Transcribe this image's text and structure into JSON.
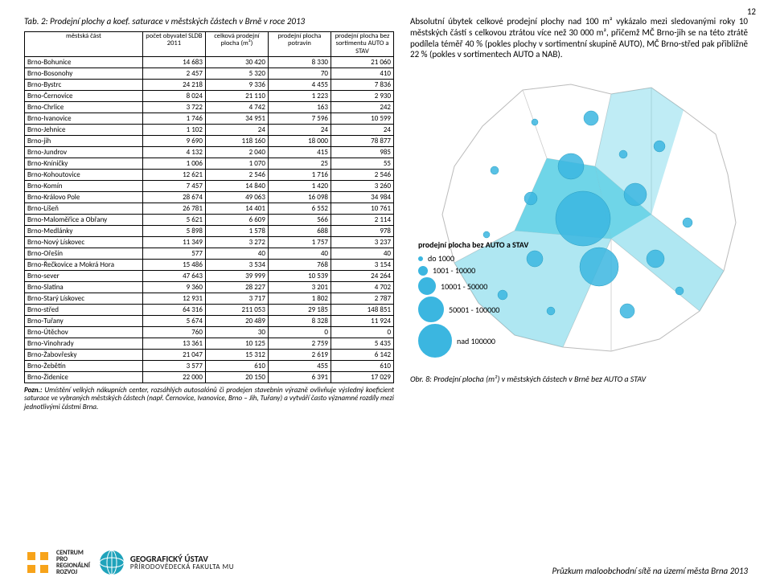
{
  "page_number": "12",
  "table": {
    "title": "Tab. 2:  Prodejní plochy a koef. saturace v městských částech v Brně v roce 2013",
    "headers": [
      "městská část",
      "počet obyvatel SLDB 2011",
      "celková prodejní plocha (m²)",
      "prodejní plocha potravin",
      "prodejní plocha bez sortimentu AUTO a STAV"
    ],
    "header_fontsize": 8.5,
    "cell_fontsize": 9,
    "border_color": "#000000",
    "rows": [
      [
        "Brno-Bohunice",
        "14 683",
        "30 420",
        "8 330",
        "21 060"
      ],
      [
        "Brno-Bosonohy",
        "2 457",
        "5 320",
        "70",
        "410"
      ],
      [
        "Brno-Bystrc",
        "24 218",
        "9 336",
        "4 455",
        "7 836"
      ],
      [
        "Brno-Černovice",
        "8 024",
        "21 110",
        "1 223",
        "2 930"
      ],
      [
        "Brno-Chrlice",
        "3 722",
        "4 742",
        "163",
        "242"
      ],
      [
        "Brno-Ivanovice",
        "1 746",
        "34 951",
        "7 596",
        "10 599"
      ],
      [
        "Brno-Jehnice",
        "1 102",
        "24",
        "24",
        "24"
      ],
      [
        "Brno-jih",
        "9 690",
        "118 160",
        "18 000",
        "78 877"
      ],
      [
        "Brno-Jundrov",
        "4 132",
        "2 040",
        "415",
        "985"
      ],
      [
        "Brno-Kníničky",
        "1 006",
        "1 070",
        "25",
        "55"
      ],
      [
        "Brno-Kohoutovice",
        "12 621",
        "2 546",
        "1 716",
        "2 546"
      ],
      [
        "Brno-Komín",
        "7 457",
        "14 840",
        "1 420",
        "3 260"
      ],
      [
        "Brno-Královo Pole",
        "28 674",
        "49 063",
        "16 098",
        "34 984"
      ],
      [
        "Brno-Líšeň",
        "26 781",
        "14 401",
        "6 552",
        "10 761"
      ],
      [
        "Brno-Maloměřice a Obřany",
        "5 621",
        "6 609",
        "566",
        "2 114"
      ],
      [
        "Brno-Medlánky",
        "5 898",
        "1 578",
        "688",
        "978"
      ],
      [
        "Brno-Nový Lískovec",
        "11 349",
        "3 272",
        "1 757",
        "3 237"
      ],
      [
        "Brno-Ořešín",
        "577",
        "40",
        "40",
        "40"
      ],
      [
        "Brno-Řečkovice a Mokrá Hora",
        "15 486",
        "3 534",
        "768",
        "3 154"
      ],
      [
        "Brno-sever",
        "47 643",
        "39 999",
        "10 539",
        "24 264"
      ],
      [
        "Brno-Slatina",
        "9 360",
        "28 227",
        "3 201",
        "4 702"
      ],
      [
        "Brno-Starý Lískovec",
        "12 931",
        "3 717",
        "1 802",
        "2 787"
      ],
      [
        "Brno-střed",
        "64 316",
        "211 053",
        "29 185",
        "148 851"
      ],
      [
        "Brno-Tuřany",
        "5 674",
        "20 489",
        "8 328",
        "11 924"
      ],
      [
        "Brno-Útěchov",
        "760",
        "30",
        "0",
        "0"
      ],
      [
        "Brno-Vinohrady",
        "13 361",
        "10 125",
        "2 759",
        "5 435"
      ],
      [
        "Brno-Žabovřesky",
        "21 047",
        "15 312",
        "2 619",
        "6 142"
      ],
      [
        "Brno-Žebětín",
        "3 577",
        "610",
        "455",
        "610"
      ],
      [
        "Brno-Židenice",
        "22 000",
        "20 150",
        "6 391",
        "17 029"
      ]
    ],
    "note_label": "Pozn.:",
    "note_text": " Umístění velkých nákupních center, rozsáhlých autosalónů či prodejen stavebnin výrazně ovlivňuje výsledný koeficient saturace ve vybraných městských částech (např. Černovice, Ivanovice, Brno – Jih, Tuřany) a vytváří často významné rozdíly mezi jednotlivými částmi Brna."
  },
  "right_paragraph": "Absolutní úbytek celkové prodejní plochy nad 100 m² vykázalo mezi sledovanými roky 10 městských částí s celkovou ztrátou více než 30 000 m², přičemž MČ Brno-jih se na této ztrátě podílela téměř 40 % (pokles plochy v sortimentní skupině AUTO), MČ Brno-střed pak přibližně 22 % (pokles v sortimentech AUTO a NAB).",
  "map": {
    "caption": "Obr. 8:  Prodejní plocha (m²) v městských částech v Brně bez AUTO a STAV",
    "background_color": "#ffffff",
    "border_color": "#cccccc",
    "area_fill": "#5fd0e6",
    "legend_title": "prodejní plocha bez AUTO a STAV",
    "legend_items": [
      {
        "label": "do 1000",
        "diameter": 6
      },
      {
        "label": "1001 - 10000",
        "diameter": 12
      },
      {
        "label": "10001 - 50000",
        "diameter": 22
      },
      {
        "label": "50001 - 100000",
        "diameter": 32
      },
      {
        "label": "nad 100000",
        "diameter": 42
      }
    ],
    "circle_color": "#3bb6e0"
  },
  "footer": {
    "logo1_line1": "CENTRUM",
    "logo1_line2": "PRO",
    "logo1_line3": "REGIONÁLNÍ",
    "logo1_line4": "ROZVOJ",
    "logo2_line1": "GEOGRAFICKÝ ÚSTAV",
    "logo2_line2": "PŘÍRODOVĚDECKÁ FAKULTA MU",
    "logo1_color": "#f7a31a",
    "logo2_color": "#1fa3bb",
    "title": "Průzkum maloobchodní sítě na území města Brna 2013"
  }
}
